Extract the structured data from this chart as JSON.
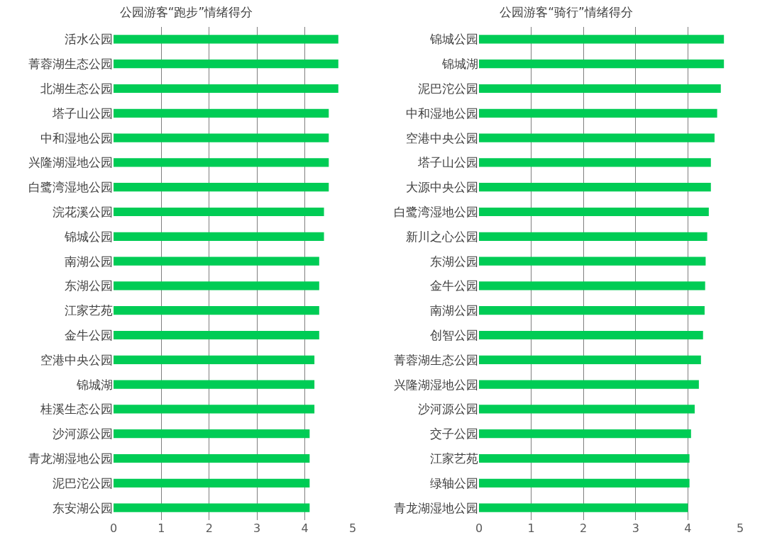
{
  "chart_data": [
    {
      "type": "bar",
      "orientation": "horizontal",
      "title": "公园游客“跑步”情绪得分",
      "categories": [
        "活水公园",
        "菁蓉湖生态公园",
        "北湖生态公园",
        "塔子山公园",
        "中和湿地公园",
        "兴隆湖湿地公园",
        "白鹭湾湿地公园",
        "浣花溪公园",
        "锦城公园",
        "南湖公园",
        "东湖公园",
        "江家艺苑",
        "金牛公园",
        "空港中央公园",
        "锦城湖",
        "桂溪生态公园",
        "沙河源公园",
        "青龙湖湿地公园",
        "泥巴沱公园",
        "东安湖公园"
      ],
      "values": [
        4.7,
        4.7,
        4.7,
        4.5,
        4.5,
        4.5,
        4.5,
        4.4,
        4.4,
        4.3,
        4.3,
        4.3,
        4.3,
        4.2,
        4.2,
        4.2,
        4.1,
        4.1,
        4.1,
        4.1
      ],
      "color": "#00cc55",
      "xlim": [
        0,
        5
      ],
      "xticks": [
        0,
        1,
        2,
        3,
        4,
        5
      ],
      "grid": "x",
      "legend": false
    },
    {
      "type": "bar",
      "orientation": "horizontal",
      "title": "公园游客“骑行”情绪得分",
      "categories": [
        "锦城公园",
        "锦城湖",
        "泥巴沱公园",
        "中和湿地公园",
        "空港中央公园",
        "塔子山公园",
        "大源中央公园",
        "白鹭湾湿地公园",
        "新川之心公园",
        "东湖公园",
        "金牛公园",
        "南湖公园",
        "创智公园",
        "菁蓉湖生态公园",
        "兴隆湖湿地公园",
        "沙河源公园",
        "交子公园",
        "江家艺苑",
        "绿轴公园",
        "青龙湖湿地公园"
      ],
      "values": [
        4.69,
        4.69,
        4.63,
        4.56,
        4.51,
        4.44,
        4.44,
        4.4,
        4.37,
        4.34,
        4.33,
        4.32,
        4.29,
        4.25,
        4.21,
        4.13,
        4.06,
        4.03,
        4.03,
        4.0
      ],
      "color": "#00cc55",
      "xlim": [
        0,
        5
      ],
      "xticks": [
        0,
        1,
        2,
        3,
        4,
        5
      ],
      "grid": "x",
      "legend": false
    }
  ]
}
